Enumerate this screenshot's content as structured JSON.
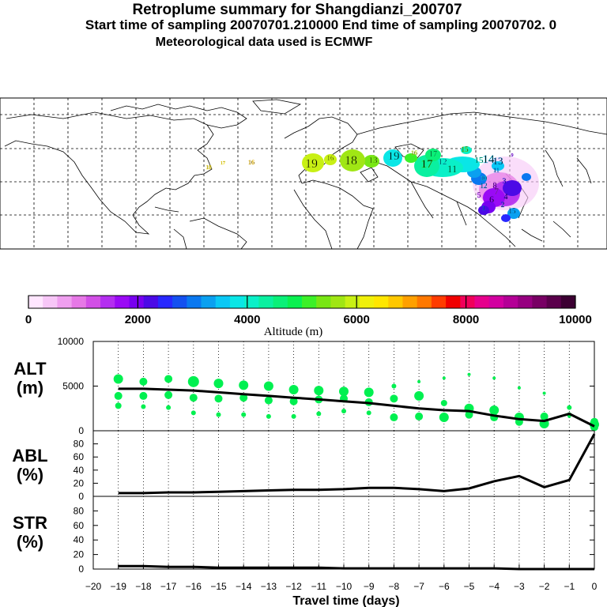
{
  "titles": {
    "line1": "Retroplume summary for Shangdianzi_200707",
    "line2": "Start time of sampling 20070701.210000     End time of sampling 20070702.     0",
    "line3": "Meteorological data used is ECMWF"
  },
  "colorbar": {
    "label": "Altitude (m)",
    "ticks": [
      "0",
      "2000",
      "4000",
      "6000",
      "8000",
      "10000"
    ],
    "range": [
      0,
      10000
    ],
    "colors": [
      "#ffe6ff",
      "#f7c6f7",
      "#ef9fef",
      "#e678e6",
      "#d24fe6",
      "#b42ef0",
      "#9a0af5",
      "#7800f0",
      "#4b0ae6",
      "#2828ff",
      "#1450f0",
      "#0a78f0",
      "#0aa0f0",
      "#0ac8f5",
      "#0ae6e6",
      "#0af0c8",
      "#0af0a0",
      "#0af078",
      "#0af050",
      "#3cf028",
      "#78e614",
      "#a0e614",
      "#c8f014",
      "#f0f00a",
      "#ffe600",
      "#ffc800",
      "#ffa000",
      "#ff7800",
      "#ff3c00",
      "#f00000",
      "#f0005a",
      "#e6008c",
      "#d200a0",
      "#b40096",
      "#960080",
      "#780064",
      "#5a004b",
      "#3c0032"
    ]
  },
  "map": {
    "labels": [
      {
        "text": "18",
        "color": "#ffe600"
      },
      {
        "text": "17",
        "color": "#ffe600"
      },
      {
        "text": "16",
        "color": "#ffc800"
      },
      {
        "text": "19",
        "color": "#c8f014"
      },
      {
        "text": "16",
        "color": "#c8f014"
      },
      {
        "text": "18",
        "color": "#a0e614"
      },
      {
        "text": "13",
        "color": "#78e614"
      },
      {
        "text": "19",
        "color": "#0ae6e6"
      },
      {
        "text": "17",
        "color": "#3cf028"
      },
      {
        "text": "16",
        "color": "#c8f014"
      },
      {
        "text": "15",
        "color": "#78e614"
      },
      {
        "text": "12",
        "color": "#0ae6e6"
      },
      {
        "text": "17",
        "color": "#0af078"
      },
      {
        "text": "11",
        "color": "#0af0a0"
      },
      {
        "text": "15",
        "color": "#0af0c8"
      },
      {
        "text": "14",
        "color": "#0ac8f5"
      },
      {
        "text": "13",
        "color": "#0aa0f0"
      },
      {
        "text": "11",
        "color": "#0a78f0"
      },
      {
        "text": "10",
        "color": "#0ae6e6"
      },
      {
        "text": "12",
        "color": "#0aa0f0"
      },
      {
        "text": "8",
        "color": "#9a0af5"
      },
      {
        "text": "7",
        "color": "#b42ef0"
      },
      {
        "text": "6",
        "color": "#7800f0"
      },
      {
        "text": "5",
        "color": "#9a0af5"
      },
      {
        "text": "4",
        "color": "#4b0ae6"
      },
      {
        "text": "2",
        "color": "#1450f0"
      },
      {
        "text": "1",
        "color": "#0a78f0"
      },
      {
        "text": "15",
        "color": "#0aa0f0"
      },
      {
        "text": "9",
        "color": "#7800f0"
      },
      {
        "text": "3",
        "color": "#2828ff"
      }
    ]
  },
  "chart_data": [
    {
      "type": "scatter",
      "panel": "ALT",
      "ylabel": "ALT (m)",
      "ylim": [
        0,
        10000
      ],
      "yticks": [
        "0",
        "5000",
        "10000"
      ],
      "x": [
        -19,
        -18,
        -17,
        -16,
        -15,
        -14,
        -13,
        -12,
        -11,
        -10,
        -9,
        -8,
        -7,
        -6,
        -5,
        -4,
        -3,
        -2,
        -1,
        0
      ],
      "series": [
        {
          "name": "mean altitude",
          "values": [
            4700,
            4700,
            4600,
            4500,
            4300,
            4100,
            3900,
            3700,
            3500,
            3300,
            3100,
            2800,
            2500,
            2300,
            2200,
            1700,
            1300,
            1100,
            1900,
            500
          ]
        },
        {
          "name": "upper cluster",
          "values": [
            5800,
            5500,
            5800,
            5500,
            5300,
            5100,
            5000,
            4600,
            4500,
            4400,
            4300,
            5000,
            5500,
            5900,
            6300,
            5900,
            4800,
            4200,
            2600,
            1000
          ]
        },
        {
          "name": "middle cluster",
          "values": [
            3900,
            3900,
            4000,
            3700,
            3600,
            3700,
            3400,
            3300,
            3500,
            3600,
            3200,
            3600,
            3900,
            3100,
            2500,
            2300,
            1500,
            1600,
            1800,
            700
          ]
        },
        {
          "name": "lower cluster",
          "values": [
            2800,
            2700,
            2600,
            2000,
            1800,
            1800,
            1600,
            1600,
            1900,
            2200,
            2000,
            1500,
            1600,
            1500,
            1800,
            1500,
            1000,
            800,
            1600,
            400
          ]
        }
      ],
      "color": "#00f050"
    },
    {
      "type": "line",
      "panel": "ABL",
      "ylabel": "ABL (%)",
      "ylim": [
        0,
        100
      ],
      "yticks": [
        "0",
        "20",
        "40",
        "60",
        "80"
      ],
      "x": [
        -19,
        -18,
        -17,
        -16,
        -15,
        -14,
        -13,
        -12,
        -11,
        -10,
        -9,
        -8,
        -7,
        -6,
        -5,
        -4,
        -3,
        -2,
        -1,
        0
      ],
      "values": [
        5,
        5,
        6,
        6,
        7,
        8,
        9,
        10,
        10,
        11,
        13,
        13,
        11,
        8,
        12,
        23,
        31,
        14,
        25,
        95
      ]
    },
    {
      "type": "line",
      "panel": "STR",
      "ylabel": "STR (%)",
      "ylim": [
        0,
        100
      ],
      "yticks": [
        "0",
        "20",
        "40",
        "60",
        "80"
      ],
      "x": [
        -19,
        -18,
        -17,
        -16,
        -15,
        -14,
        -13,
        -12,
        -11,
        -10,
        -9,
        -8,
        -7,
        -6,
        -5,
        -4,
        -3,
        -2,
        -1,
        0
      ],
      "values": [
        4,
        4,
        3,
        3,
        2,
        2,
        2,
        2,
        2,
        1,
        1,
        1,
        1,
        1,
        1,
        1,
        0,
        0,
        0,
        0
      ]
    }
  ],
  "xaxis": {
    "label": "Travel time (days)",
    "ticks": [
      "-20",
      "-19",
      "-18",
      "-17",
      "-16",
      "-15",
      "-14",
      "-13",
      "-12",
      "-11",
      "-10",
      "-9",
      "-8",
      "-7",
      "-6",
      "-5",
      "-4",
      "-3",
      "-2",
      "-1",
      "0"
    ],
    "range": [
      -20,
      0
    ]
  },
  "panel_labels": {
    "alt_top": "ALT",
    "alt_bottom": "(m)",
    "abl_top": "ABL",
    "abl_bottom": "(%)",
    "str_top": "STR",
    "str_bottom": "(%)"
  }
}
